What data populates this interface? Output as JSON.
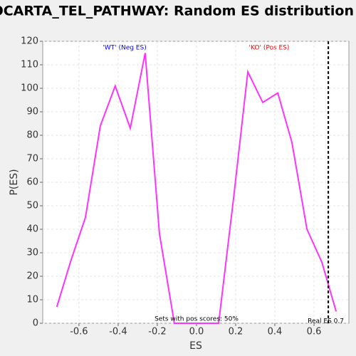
{
  "chart_data": {
    "type": "line",
    "title": "BIOCARTA_TEL_PATHWAY: Random ES distribution",
    "x_label": "ES",
    "y_label": "P(ES)",
    "x": [
      -0.713,
      -0.64,
      -0.567,
      -0.491,
      -0.415,
      -0.338,
      -0.262,
      -0.189,
      -0.113,
      -0.04,
      0.036,
      0.113,
      0.189,
      0.262,
      0.338,
      0.415,
      0.487,
      0.564,
      0.64,
      0.713
    ],
    "series": [
      {
        "color": "#ff33ff",
        "values": [
          7,
          27,
          45,
          84,
          101,
          83,
          115,
          38,
          0,
          0,
          0,
          0,
          53,
          107,
          94,
          98,
          77,
          40,
          26,
          5
        ]
      }
    ],
    "xlim": [
      -0.785,
      0.778
    ],
    "ylim": [
      0,
      120
    ],
    "xticks": [
      -0.6,
      -0.4,
      -0.2,
      {
        "value": 0,
        "label": "0.0"
      },
      0.2,
      0.4,
      0.6
    ],
    "yticks": [
      0,
      10,
      20,
      30,
      40,
      50,
      60,
      70,
      80,
      90,
      100,
      110,
      120
    ],
    "grid": true,
    "neg_label": "'WT' (Neg ES)",
    "pos_label": "'KO' (Pos ES)",
    "pos_fraction_label": "Sets with pos scores: 50%",
    "real_es": {
      "value": 0.673,
      "label": "Real ES 0.7"
    }
  }
}
